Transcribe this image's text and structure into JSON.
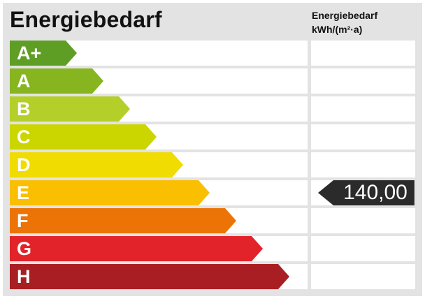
{
  "title": "Energiebedarf",
  "unit_header": {
    "line1": "Energiebedarf",
    "line2": "kWh/(m²·a)"
  },
  "classes": [
    {
      "label": "A+",
      "color": "#5f9e25"
    },
    {
      "label": "A",
      "color": "#86b51f"
    },
    {
      "label": "B",
      "color": "#b5cf2a"
    },
    {
      "label": "C",
      "color": "#cbd500"
    },
    {
      "label": "D",
      "color": "#f0dc00"
    },
    {
      "label": "E",
      "color": "#f9bf00"
    },
    {
      "label": "F",
      "color": "#ec7406"
    },
    {
      "label": "G",
      "color": "#e3232a"
    },
    {
      "label": "H",
      "color": "#a91e23"
    }
  ],
  "current": {
    "class_index": 5,
    "value": "140,00",
    "color": "#2b2b2b"
  }
}
